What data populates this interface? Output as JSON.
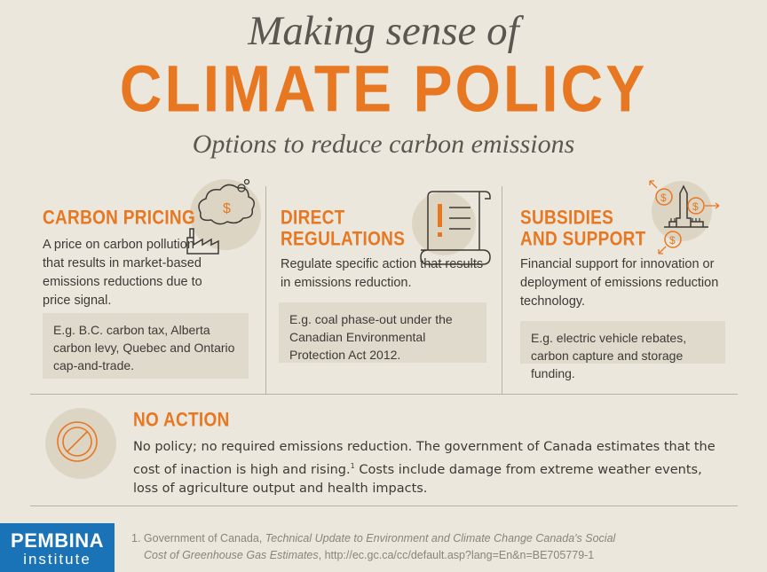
{
  "header": {
    "intro": "Making sense of",
    "title": "CLIMATE POLICY",
    "subtitle": "Options to reduce carbon emissions"
  },
  "columns": [
    {
      "heading": "CARBON PRICING",
      "description": "A price on carbon pollution that results in market-based emissions reductions due to price signal.",
      "example": "E.g. B.C. carbon tax, Alberta carbon levy, Quebec and Ontario cap-and-trade.",
      "icon": "factory-money-cloud-icon"
    },
    {
      "heading_line1": "DIRECT",
      "heading_line2": "REGULATIONS",
      "description": "Regulate specific action that results in emissions reduction.",
      "example": "E.g. coal phase-out under the Canadian Environmental Protection Act 2012.",
      "icon": "scroll-icon"
    },
    {
      "heading_line1": "SUBSIDIES",
      "heading_line2": "AND SUPPORT",
      "description": "Financial support for innovation or deployment of emissions reduction technology.",
      "example": "E.g. electric vehicle rebates, carbon capture and storage funding.",
      "icon": "parliament-money-icon"
    }
  ],
  "no_action": {
    "heading": "NO ACTION",
    "description_part1": "No policy; no required emissions reduction. The government of Canada estimates that the cost of inaction is high and rising.",
    "footnote_ref": "1",
    "description_part2": " Costs include damage from extreme weather events, loss of agriculture output and health impacts.",
    "icon": "prohibited-icon"
  },
  "footer": {
    "logo_main": "PEMBINA",
    "logo_sub": "institute",
    "footnote_prefix": "1. Government of Canada, ",
    "footnote_title_line1": "Technical Update to Environment and Climate Change Canada's Social",
    "footnote_title_line2": "Cost of Greenhouse Gas Estimates",
    "footnote_url": ", http://ec.gc.ca/cc/default.asp?lang=En&n=BE705779-1"
  },
  "colors": {
    "accent": "#e87722",
    "background": "#ece7dd",
    "box": "#e0dacd",
    "logo_blue": "#1a73b6",
    "text": "#3d3a35"
  }
}
